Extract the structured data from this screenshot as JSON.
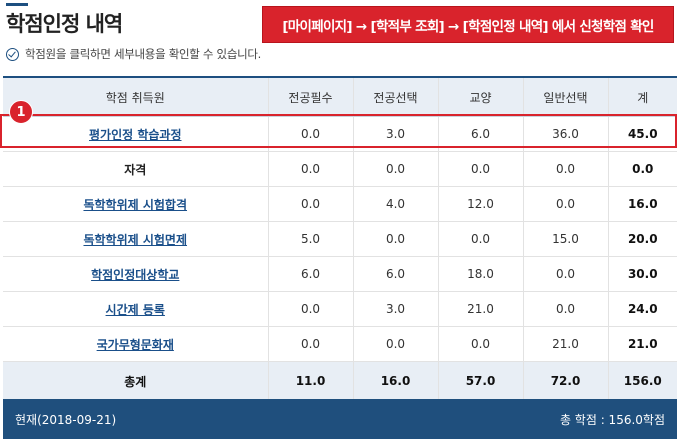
{
  "page": {
    "title": "학점인정 내역",
    "callout": "[마이페이지] → [학적부 조회] → [학점인정 내역] 에서 신청학점 확인",
    "hint": "학점원을 클릭하면 세부내용을 확인할 수 있습니다.",
    "badge": "1"
  },
  "table": {
    "headers": [
      "학점 취득원",
      "전공필수",
      "전공선택",
      "교양",
      "일반선택",
      "계"
    ],
    "rows": [
      {
        "name": "평가인정 학습과정",
        "link": true,
        "values": [
          "0.0",
          "3.0",
          "6.0",
          "36.0",
          "45.0"
        ]
      },
      {
        "name": "자격",
        "link": false,
        "values": [
          "0.0",
          "0.0",
          "0.0",
          "0.0",
          "0.0"
        ]
      },
      {
        "name": "독학학위제 시험합격",
        "link": true,
        "values": [
          "0.0",
          "4.0",
          "12.0",
          "0.0",
          "16.0"
        ]
      },
      {
        "name": "독학학위제 시험면제",
        "link": true,
        "values": [
          "5.0",
          "0.0",
          "0.0",
          "15.0",
          "20.0"
        ]
      },
      {
        "name": "학점인정대상학교",
        "link": true,
        "values": [
          "6.0",
          "6.0",
          "18.0",
          "0.0",
          "30.0"
        ]
      },
      {
        "name": "시간제 등록",
        "link": true,
        "values": [
          "0.0",
          "3.0",
          "21.0",
          "0.0",
          "24.0"
        ]
      },
      {
        "name": "국가무형문화재",
        "link": true,
        "values": [
          "0.0",
          "0.0",
          "0.0",
          "21.0",
          "21.0"
        ]
      }
    ],
    "sum": {
      "name": "총계",
      "values": [
        "11.0",
        "16.0",
        "57.0",
        "72.0",
        "156.0"
      ]
    }
  },
  "footer": {
    "date": "현재(2018-09-21)",
    "total": "총 학점 : 156.0학점"
  }
}
